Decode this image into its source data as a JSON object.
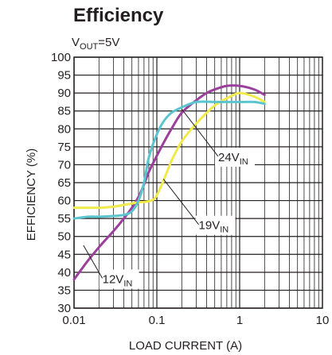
{
  "chart_data": {
    "type": "line",
    "title": "Efficiency",
    "subtitle": {
      "main": "V",
      "sub": "OUT",
      "rest": "=5V"
    },
    "xlabel": "LOAD CURRENT (A)",
    "ylabel": "EFFICIENCY (%)",
    "x_scale": "log",
    "xlim": [
      0.01,
      10
    ],
    "ylim": [
      30,
      100
    ],
    "x_ticks": [
      "0.01",
      "0.1",
      "1",
      "10"
    ],
    "y_ticks": [
      "30",
      "35",
      "40",
      "45",
      "50",
      "55",
      "60",
      "65",
      "70",
      "75",
      "80",
      "85",
      "90",
      "95",
      "100"
    ],
    "grid": true,
    "series": [
      {
        "name_main": "12V",
        "name_sub": "IN",
        "color": "#9b3f9c",
        "x": [
          0.01,
          0.012,
          0.015,
          0.02,
          0.025,
          0.03,
          0.04,
          0.05,
          0.06,
          0.07,
          0.08,
          0.1,
          0.12,
          0.15,
          0.2,
          0.3,
          0.4,
          0.5,
          0.7,
          1,
          1.5,
          2
        ],
        "y": [
          38,
          40.5,
          43.5,
          47,
          49.5,
          51.5,
          55,
          58,
          61,
          64.5,
          68,
          72.5,
          76,
          80,
          84.5,
          88,
          90,
          91,
          92,
          92,
          91,
          89.5
        ]
      },
      {
        "name_main": "19V",
        "name_sub": "IN",
        "color": "#f0ea4c",
        "x": [
          0.01,
          0.015,
          0.02,
          0.03,
          0.04,
          0.05,
          0.06,
          0.07,
          0.08,
          0.09,
          0.1,
          0.12,
          0.15,
          0.2,
          0.3,
          0.5,
          0.7,
          1,
          1.5,
          2
        ],
        "y": [
          58,
          58,
          58,
          58.3,
          58.8,
          59.2,
          59.5,
          59.6,
          59.8,
          60.2,
          61.5,
          65.5,
          71,
          76.5,
          81.5,
          86.5,
          88.5,
          90,
          89,
          87.5
        ]
      },
      {
        "name_main": "24V",
        "name_sub": "IN",
        "color": "#5bc5cf",
        "x": [
          0.01,
          0.015,
          0.02,
          0.03,
          0.04,
          0.05,
          0.06,
          0.07,
          0.08,
          0.1,
          0.12,
          0.15,
          0.2,
          0.3,
          0.5,
          0.7,
          1,
          1.5,
          2
        ],
        "y": [
          55,
          55.5,
          55.5,
          55.7,
          56,
          57,
          60,
          65,
          72,
          78.5,
          82,
          84.5,
          86,
          87.5,
          87.5,
          87.5,
          87.5,
          87.5,
          87
        ]
      }
    ]
  }
}
